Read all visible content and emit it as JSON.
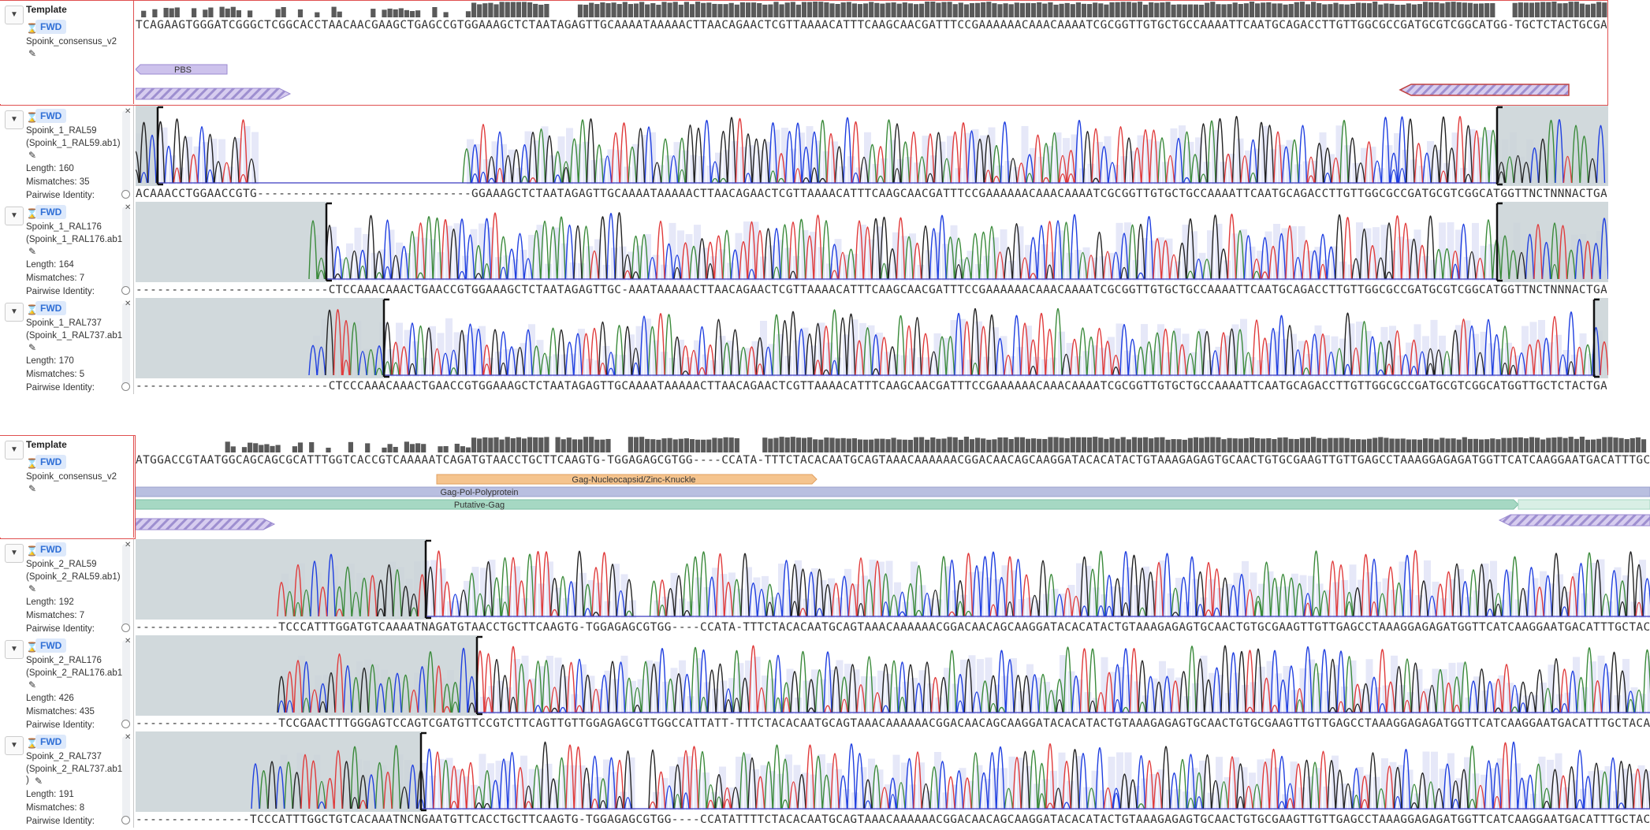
{
  "colors": {
    "A": "#3a8a3a",
    "C": "#1f3fe0",
    "G": "#222222",
    "T": "#e03a3a",
    "shade": "#c9d2d6",
    "bar": "#5a5a5a",
    "qual": "#e6e8f8",
    "pbs": "#cdc2ec",
    "gag_nc": "#f5c48e",
    "pol": "#b9bfe0",
    "putative": "#a6d8c3",
    "primer": "#b7a7de",
    "mismatch": "#f1b3b3"
  },
  "icons": {
    "collapse": "chevron-down-icon",
    "sort": "hourglass-icon",
    "edit": "pencil-icon",
    "close": "close-icon"
  },
  "panel1": {
    "template": {
      "title": "Template",
      "strand": "FWD",
      "name": "Spoink_consensus_v2",
      "sequence": "TCAGAAGTGGGATCGGGCTCGGCACCTAACAACGAAGCTGAGCCGTGGAAAGCTCTAATAGAGTTGCAAAATAAAAACTTAACAGAACTCGTTAAAACATTTCAAGCAACGATTTCCGAAAAAACAAACAAAATCGCGGTTGTGCTGCCAAAATTCAATGCAGACCTTGTTGGCGCCGATGCGTCGGCATGG-TGCTCTACTGCGAA"
    },
    "annotations": [
      {
        "label": "PBS"
      }
    ],
    "reads": [
      {
        "strand": "FWD",
        "name": "Spoink_1_RAL59",
        "file": "(Spoink_1_RAL59.ab1)",
        "length": "Length: 160",
        "mismatches": "Mismatches: 35",
        "identity": "Pairwise Identity:",
        "sequence": "ACAAACCTGGAACCGTG------------------------------GGAAAGCTCTAATAGAGTTGCAAAATAAAAACTTAACAGAACTCGTTAAAACATTTCAAGCAACGATTTCCGAAAAAACAAACAAAATCGCGGTTGTGCTGCCAAAATTCAATGCAGACCTTGTTGGCGCCGATGCGTCGGCATGGTTNCTNNNACTGAN-"
      },
      {
        "strand": "FWD",
        "name": "Spoink_1_RAL176",
        "file": "(Spoink_1_RAL176.ab1)",
        "length": "Length: 164",
        "mismatches": "Mismatches: 7",
        "identity": "Pairwise Identity:",
        "sequence": "---------------------------CTCCAAACAAACTGAACCGTGGAAAGCTCTAATAGAGTTGC-AAATAAAAACTTAACAGAACTCGTTAAAACATTTCAAGCAACGATTTCCGAAAAAACAAACAAAATCGCGGTTGTGCTGCCAAAATTCAATGCAGACCTTGTTGGCGCCGATGCGTCGGCATGGTTNCTNNNACTGAN-"
      },
      {
        "strand": "FWD",
        "name": "Spoink_1_RAL737",
        "file": "(Spoink_1_RAL737.ab1)",
        "length": "Length: 170",
        "mismatches": "Mismatches: 5",
        "identity": "Pairwise Identity:",
        "sequence": "---------------------------CTCCCAAACAAACTGAACCGTGGAAAGCTCTAATAGAGTTGCAAAATAAAAACTTAACAGAACTCGTTAAAACATTTCAAGCAACGATTTCCGAAAAAACAAACAAAATCGCGGTTGTGCTGCCAAAATTCAATGCAGACCTTGTTGGCGCCGATGCGTCGGCATGGTTGCTCTACTGAACC"
      }
    ]
  },
  "panel2": {
    "template": {
      "title": "Template",
      "strand": "FWD",
      "name": "Spoink_consensus_v2",
      "sequence": "ATGGACCGTAATGGCAGCAGCGCATTTGGTCACCGTCAAAAATCAGATGTAACCTGCTTCAAGTG-TGGAGAGCGTGG----CCATA-TTTCTACACAATGCAGTAAACAAAAAACGGACAACAGCAAGGATACACATACTGTAAAGAGAGTGCAACTGTGCGAAGTTGTTGAGCCTAAAGGAGAGATGGTTCATCAAGGAATGACATTTGCTACAACGTTTGACTCTGGCGCGGAGTGT"
    },
    "annotations": [
      {
        "label": "Gag-Nucleocapsid/Zinc-Knuckle"
      },
      {
        "label": "Gag-Pol-Polyprotein"
      },
      {
        "label": "Putative-Gag"
      }
    ],
    "reads": [
      {
        "strand": "FWD",
        "name": "Spoink_2_RAL59",
        "file": "(Spoink_2_RAL59.ab1)",
        "length": "Length: 192",
        "mismatches": "Mismatches: 7",
        "identity": "Pairwise Identity:",
        "sequence": "--------------------TCCCATTTGGATGTCAAAATNAGATGTAACCTGCTTCAAGTG-TGGAGAGCGTGG----CCATA-TTTCTACACAATGCAGTAAACAAAAAACGGACAACAGCAAGGATACACATACTGTAAAGAGAGTGCAACTGTGCGAAGTTGTTGAGCCTAAAGGAGAGATGGTTCATCAAGGAATGACATTTGCTACAACGTTTGACTCTGCCGAGAAGTGT"
      },
      {
        "strand": "FWD",
        "name": "Spoink_2_RAL176",
        "file": "(Spoink_2_RAL176.ab1)",
        "length": "Length: 426",
        "mismatches": "Mismatches: 435",
        "identity": "Pairwise Identity:",
        "sequence": "--------------------TCCGAACTTTGGGAGTCCAGTCGATGTTCCGTCTTCAGTTGTTGGAGAGCGTTGGCCATTATT-TTTCTACACAATGCAGTAAACAAAAAACGGACAACAGCAAGGATACACATACTGTAAAGAGAGTGCAACTGTGCGAAGTTGTTGAGCCTAAAGGAGAGATGGTTCATCAAGGAATGACATTTGCTACAACGTTTGACTCCGGCGCGGAGTGT"
      },
      {
        "strand": "FWD",
        "name": "Spoink_2_RAL737",
        "file": "(Spoink_2_RAL737.ab1",
        "file2": ")",
        "length": "Length: 191",
        "mismatches": "Mismatches: 8",
        "identity": "Pairwise Identity:",
        "sequence": "----------------TCCCATTTGGCTGTCACAAATNCNGAATGTTCACCTGCTTCAAGTG-TGGAGAGCGTGG----CCATATTTTCTACACAATGCAGTAAACAAAAAACGGACAACAGCAAGGATACACATACTGTAAAGAGAGTGCAACTGTGCGAAGTTGTTGAGCCTAAAGGAGAGATGGTTCATCAAGGAATGACATTTGCTACAACGTTTGACTCTGCCGCGGAGTGT"
      }
    ]
  }
}
